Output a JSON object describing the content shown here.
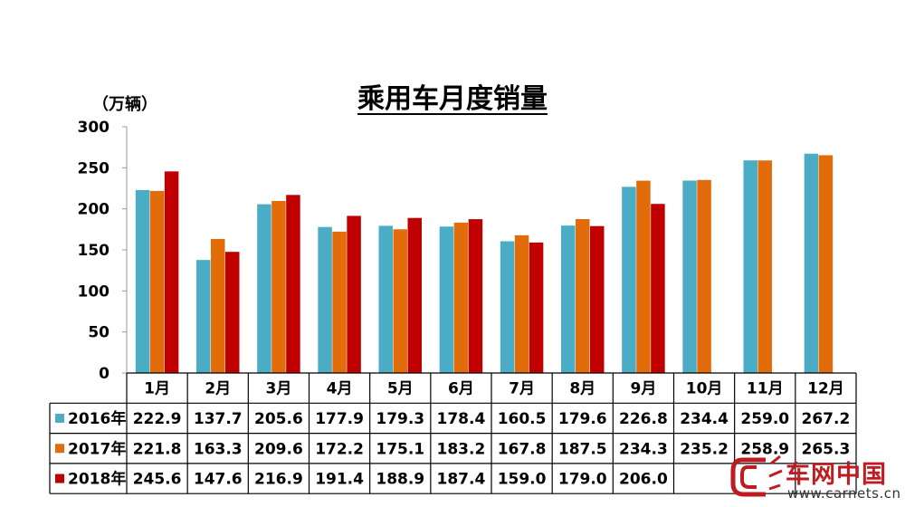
{
  "chart_data": {
    "type": "bar",
    "title": "乘用车月度销量",
    "ylabel": "（万辆）",
    "ylim": [
      0,
      300
    ],
    "yticks": [
      0,
      50,
      100,
      150,
      200,
      250,
      300
    ],
    "categories": [
      "1月",
      "2月",
      "3月",
      "4月",
      "5月",
      "6月",
      "7月",
      "8月",
      "9月",
      "10月",
      "11月",
      "12月"
    ],
    "series": [
      {
        "name": "2016年",
        "color": "#4bacc6",
        "values": [
          222.9,
          137.7,
          205.6,
          177.9,
          179.3,
          178.4,
          160.5,
          179.6,
          226.8,
          234.4,
          259.0,
          267.2
        ],
        "labels": [
          "222.9",
          "137.7",
          "205.6",
          "177.9",
          "179.3",
          "178.4",
          "160.5",
          "179.6",
          "226.8",
          "234.4",
          "259.0",
          "267.2"
        ]
      },
      {
        "name": "2017年",
        "color": "#e36c0a",
        "values": [
          221.8,
          163.3,
          209.6,
          172.2,
          175.1,
          183.2,
          167.8,
          187.5,
          234.3,
          235.2,
          258.9,
          265.3
        ],
        "labels": [
          "221.8",
          "163.3",
          "209.6",
          "172.2",
          "175.1",
          "183.2",
          "167.8",
          "187.5",
          "234.3",
          "235.2",
          "258.9",
          "265.3"
        ]
      },
      {
        "name": "2018年",
        "color": "#c00000",
        "values": [
          245.6,
          147.6,
          216.9,
          191.4,
          188.9,
          187.4,
          159.0,
          179.0,
          206.0,
          null,
          null,
          null
        ],
        "labels": [
          "245.6",
          "147.6",
          "216.9",
          "191.4",
          "188.9",
          "187.4",
          "159.0",
          "179.0",
          "206.0",
          "",
          "",
          ""
        ]
      }
    ],
    "grid": false,
    "legend": "table-below"
  },
  "watermark": {
    "name_cn": "车网中国",
    "url": "www.carnets.cn"
  }
}
